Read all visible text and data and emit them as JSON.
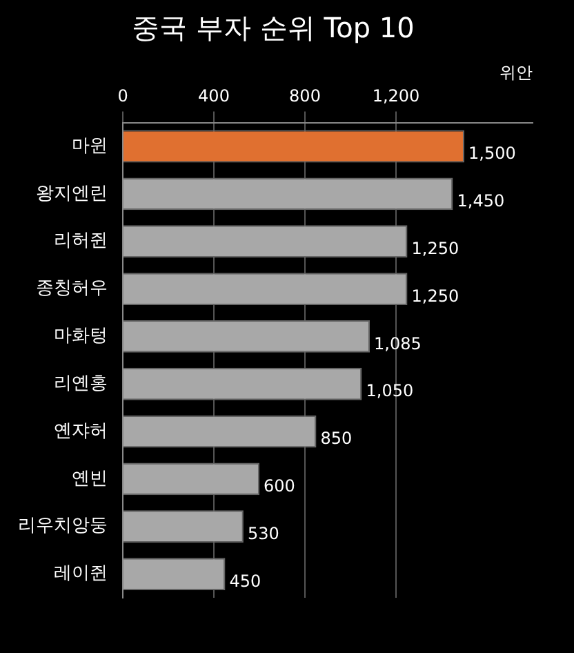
{
  "chart_data": {
    "type": "bar",
    "orientation": "horizontal",
    "title": "중국 부자 순위 Top 10",
    "xlabel": "위안",
    "categories": [
      "마윈",
      "왕지엔린",
      "리허쥔",
      "종칭허우",
      "마화텅",
      "리옌홍",
      "옌쟈허",
      "옌빈",
      "리우치앙둥",
      "레이쥔"
    ],
    "values": [
      1500,
      1450,
      1250,
      1250,
      1085,
      1050,
      850,
      600,
      530,
      450
    ],
    "colors": [
      "#e07030",
      "#a8a8a8",
      "#a8a8a8",
      "#a8a8a8",
      "#a8a8a8",
      "#a8a8a8",
      "#a8a8a8",
      "#a8a8a8",
      "#a8a8a8",
      "#a8a8a8"
    ],
    "xlim": [
      0,
      1800
    ],
    "xticks": [
      0,
      400,
      800,
      {
        "value": 1200,
        "label": "1,200"
      }
    ],
    "value_labels": [
      "1,500",
      "1,450",
      "1,250",
      "1,250",
      "1,085",
      "1,050",
      "850",
      "600",
      "530",
      "450"
    ],
    "grid": "x",
    "legend": false
  }
}
